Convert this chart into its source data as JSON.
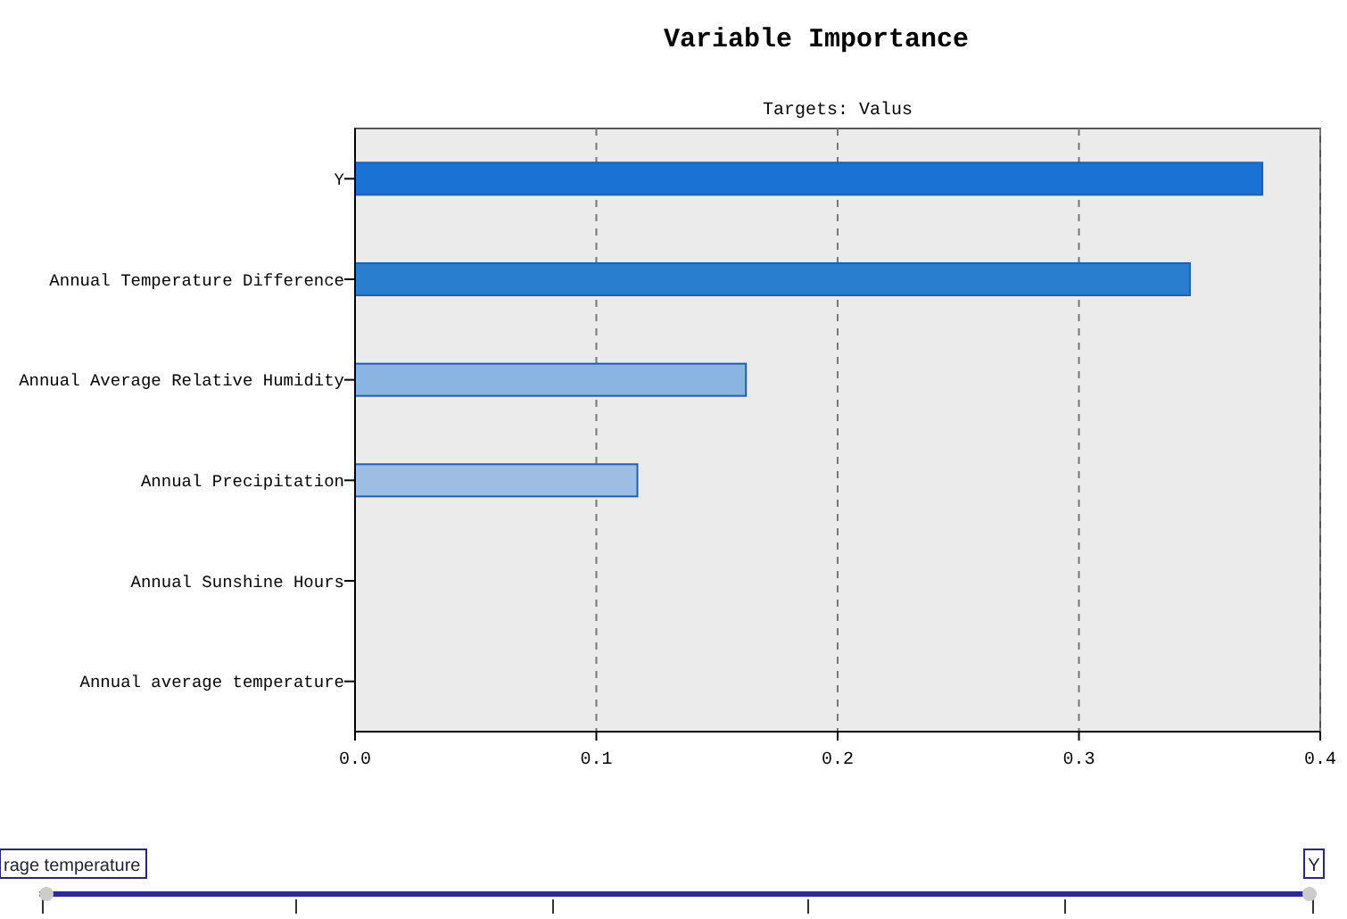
{
  "chart_data": {
    "type": "bar",
    "orientation": "horizontal",
    "title": "Variable Importance",
    "subtitle": "Targets: Valus",
    "categories": [
      "Y",
      "Annual Temperature Difference",
      "Annual Average Relative Humidity",
      "Annual Precipitation",
      "Annual Sunshine Hours",
      "Annual average temperature"
    ],
    "values": [
      0.376,
      0.346,
      0.162,
      0.117,
      0,
      0
    ],
    "colors": [
      "#1a73d4",
      "#2a7ed0",
      "#8ab4e2",
      "#9dbde2",
      "#9dbde2",
      "#9dbde2"
    ],
    "xlim": [
      0,
      0.4
    ],
    "xticks": [
      {
        "value": 0,
        "label": "0.0"
      },
      0.1,
      0.2,
      0.3,
      0.4
    ],
    "grid": "x",
    "line_style": "dashed",
    "annotations": [
      "rage temperature",
      "Y"
    ]
  }
}
